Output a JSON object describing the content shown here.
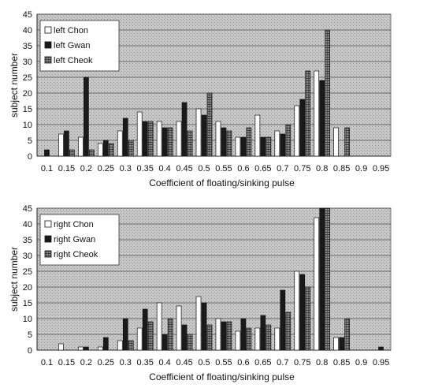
{
  "chart_data": [
    {
      "type": "bar",
      "title": "",
      "xlabel": "Coefficient of floating/sinking pulse",
      "ylabel": "subject number",
      "ylim": [
        0,
        45
      ],
      "yticks": [
        0,
        5,
        10,
        15,
        20,
        25,
        30,
        35,
        40,
        45
      ],
      "grid": true,
      "legend_position": "top-left",
      "categories": [
        "0.1",
        "0.15",
        "0.2",
        "0.25",
        "0.3",
        "0.35",
        "0.4",
        "0.45",
        "0.5",
        "0.55",
        "0.6",
        "0.65",
        "0.7",
        "0.75",
        "0.8",
        "0.85",
        "0.9",
        "0.95"
      ],
      "series": [
        {
          "name": "left Chon",
          "values": [
            0,
            7,
            6,
            4,
            8,
            14,
            11,
            11,
            15,
            11,
            6,
            13,
            8,
            16,
            27,
            9,
            0,
            0
          ]
        },
        {
          "name": "left Gwan",
          "values": [
            2,
            8,
            25,
            5,
            12,
            11,
            9,
            17,
            13,
            9,
            6,
            6,
            7,
            18,
            24,
            0,
            0,
            0
          ]
        },
        {
          "name": "left Cheok",
          "values": [
            0,
            2,
            2,
            4,
            5,
            11,
            9,
            8,
            20,
            8,
            9,
            6,
            10,
            27,
            40,
            9,
            0,
            0
          ]
        }
      ]
    },
    {
      "type": "bar",
      "title": "",
      "xlabel": "Coefficient of floating/sinking pulse",
      "ylabel": "subject number",
      "ylim": [
        0,
        45
      ],
      "yticks": [
        0,
        5,
        10,
        15,
        20,
        25,
        30,
        35,
        40,
        45
      ],
      "grid": true,
      "legend_position": "top-left",
      "categories": [
        "0.1",
        "0.15",
        "0.2",
        "0.25",
        "0.3",
        "0.35",
        "0.4",
        "0.45",
        "0.5",
        "0.55",
        "0.6",
        "0.65",
        "0.7",
        "0.75",
        "0.8",
        "0.85",
        "0.9",
        "0.95"
      ],
      "series": [
        {
          "name": "right Chon",
          "values": [
            0,
            2,
            1,
            1,
            3,
            7,
            15,
            14,
            17,
            10,
            6,
            7,
            7,
            25,
            42,
            4,
            0,
            0
          ]
        },
        {
          "name": "right Gwan",
          "values": [
            0,
            0,
            1,
            4,
            10,
            13,
            5,
            8,
            15,
            9,
            10,
            11,
            19,
            24,
            45,
            4,
            0,
            1
          ]
        },
        {
          "name": "right Cheok",
          "values": [
            0,
            0,
            0,
            0,
            3,
            9,
            10,
            5,
            8,
            9,
            7,
            8,
            12,
            20,
            45,
            10,
            0,
            0
          ]
        }
      ]
    }
  ]
}
